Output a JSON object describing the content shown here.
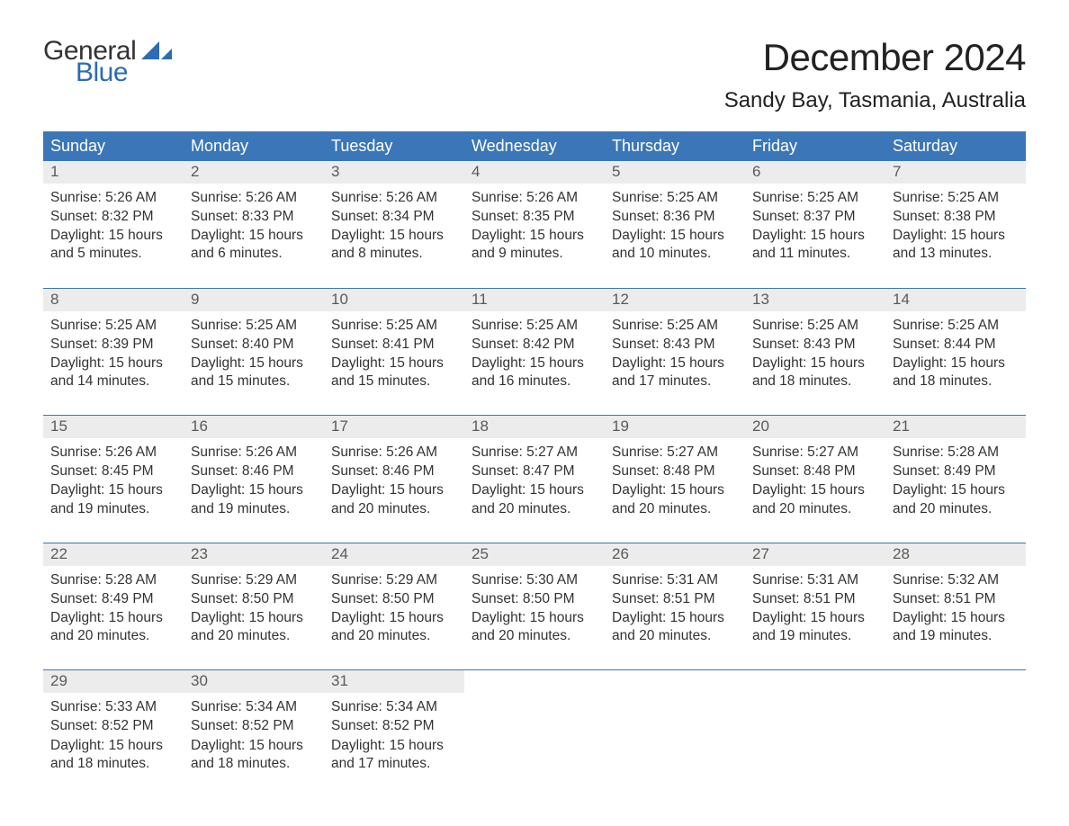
{
  "brand": {
    "name1": "General",
    "name2": "Blue",
    "accent": "#2b6cb3"
  },
  "title": "December 2024",
  "subtitle": "Sandy Bay, Tasmania, Australia",
  "colors": {
    "header_bg": "#3b77b8",
    "header_text": "#ffffff",
    "daynum_bg": "#ececec",
    "rule": "#3b77b8",
    "text": "#333333"
  },
  "weekdays": [
    "Sunday",
    "Monday",
    "Tuesday",
    "Wednesday",
    "Thursday",
    "Friday",
    "Saturday"
  ],
  "weeks": [
    [
      {
        "n": "1",
        "sunrise": "Sunrise: 5:26 AM",
        "sunset": "Sunset: 8:32 PM",
        "day": "Daylight: 15 hours and 5 minutes."
      },
      {
        "n": "2",
        "sunrise": "Sunrise: 5:26 AM",
        "sunset": "Sunset: 8:33 PM",
        "day": "Daylight: 15 hours and 6 minutes."
      },
      {
        "n": "3",
        "sunrise": "Sunrise: 5:26 AM",
        "sunset": "Sunset: 8:34 PM",
        "day": "Daylight: 15 hours and 8 minutes."
      },
      {
        "n": "4",
        "sunrise": "Sunrise: 5:26 AM",
        "sunset": "Sunset: 8:35 PM",
        "day": "Daylight: 15 hours and 9 minutes."
      },
      {
        "n": "5",
        "sunrise": "Sunrise: 5:25 AM",
        "sunset": "Sunset: 8:36 PM",
        "day": "Daylight: 15 hours and 10 minutes."
      },
      {
        "n": "6",
        "sunrise": "Sunrise: 5:25 AM",
        "sunset": "Sunset: 8:37 PM",
        "day": "Daylight: 15 hours and 11 minutes."
      },
      {
        "n": "7",
        "sunrise": "Sunrise: 5:25 AM",
        "sunset": "Sunset: 8:38 PM",
        "day": "Daylight: 15 hours and 13 minutes."
      }
    ],
    [
      {
        "n": "8",
        "sunrise": "Sunrise: 5:25 AM",
        "sunset": "Sunset: 8:39 PM",
        "day": "Daylight: 15 hours and 14 minutes."
      },
      {
        "n": "9",
        "sunrise": "Sunrise: 5:25 AM",
        "sunset": "Sunset: 8:40 PM",
        "day": "Daylight: 15 hours and 15 minutes."
      },
      {
        "n": "10",
        "sunrise": "Sunrise: 5:25 AM",
        "sunset": "Sunset: 8:41 PM",
        "day": "Daylight: 15 hours and 15 minutes."
      },
      {
        "n": "11",
        "sunrise": "Sunrise: 5:25 AM",
        "sunset": "Sunset: 8:42 PM",
        "day": "Daylight: 15 hours and 16 minutes."
      },
      {
        "n": "12",
        "sunrise": "Sunrise: 5:25 AM",
        "sunset": "Sunset: 8:43 PM",
        "day": "Daylight: 15 hours and 17 minutes."
      },
      {
        "n": "13",
        "sunrise": "Sunrise: 5:25 AM",
        "sunset": "Sunset: 8:43 PM",
        "day": "Daylight: 15 hours and 18 minutes."
      },
      {
        "n": "14",
        "sunrise": "Sunrise: 5:25 AM",
        "sunset": "Sunset: 8:44 PM",
        "day": "Daylight: 15 hours and 18 minutes."
      }
    ],
    [
      {
        "n": "15",
        "sunrise": "Sunrise: 5:26 AM",
        "sunset": "Sunset: 8:45 PM",
        "day": "Daylight: 15 hours and 19 minutes."
      },
      {
        "n": "16",
        "sunrise": "Sunrise: 5:26 AM",
        "sunset": "Sunset: 8:46 PM",
        "day": "Daylight: 15 hours and 19 minutes."
      },
      {
        "n": "17",
        "sunrise": "Sunrise: 5:26 AM",
        "sunset": "Sunset: 8:46 PM",
        "day": "Daylight: 15 hours and 20 minutes."
      },
      {
        "n": "18",
        "sunrise": "Sunrise: 5:27 AM",
        "sunset": "Sunset: 8:47 PM",
        "day": "Daylight: 15 hours and 20 minutes."
      },
      {
        "n": "19",
        "sunrise": "Sunrise: 5:27 AM",
        "sunset": "Sunset: 8:48 PM",
        "day": "Daylight: 15 hours and 20 minutes."
      },
      {
        "n": "20",
        "sunrise": "Sunrise: 5:27 AM",
        "sunset": "Sunset: 8:48 PM",
        "day": "Daylight: 15 hours and 20 minutes."
      },
      {
        "n": "21",
        "sunrise": "Sunrise: 5:28 AM",
        "sunset": "Sunset: 8:49 PM",
        "day": "Daylight: 15 hours and 20 minutes."
      }
    ],
    [
      {
        "n": "22",
        "sunrise": "Sunrise: 5:28 AM",
        "sunset": "Sunset: 8:49 PM",
        "day": "Daylight: 15 hours and 20 minutes."
      },
      {
        "n": "23",
        "sunrise": "Sunrise: 5:29 AM",
        "sunset": "Sunset: 8:50 PM",
        "day": "Daylight: 15 hours and 20 minutes."
      },
      {
        "n": "24",
        "sunrise": "Sunrise: 5:29 AM",
        "sunset": "Sunset: 8:50 PM",
        "day": "Daylight: 15 hours and 20 minutes."
      },
      {
        "n": "25",
        "sunrise": "Sunrise: 5:30 AM",
        "sunset": "Sunset: 8:50 PM",
        "day": "Daylight: 15 hours and 20 minutes."
      },
      {
        "n": "26",
        "sunrise": "Sunrise: 5:31 AM",
        "sunset": "Sunset: 8:51 PM",
        "day": "Daylight: 15 hours and 20 minutes."
      },
      {
        "n": "27",
        "sunrise": "Sunrise: 5:31 AM",
        "sunset": "Sunset: 8:51 PM",
        "day": "Daylight: 15 hours and 19 minutes."
      },
      {
        "n": "28",
        "sunrise": "Sunrise: 5:32 AM",
        "sunset": "Sunset: 8:51 PM",
        "day": "Daylight: 15 hours and 19 minutes."
      }
    ],
    [
      {
        "n": "29",
        "sunrise": "Sunrise: 5:33 AM",
        "sunset": "Sunset: 8:52 PM",
        "day": "Daylight: 15 hours and 18 minutes."
      },
      {
        "n": "30",
        "sunrise": "Sunrise: 5:34 AM",
        "sunset": "Sunset: 8:52 PM",
        "day": "Daylight: 15 hours and 18 minutes."
      },
      {
        "n": "31",
        "sunrise": "Sunrise: 5:34 AM",
        "sunset": "Sunset: 8:52 PM",
        "day": "Daylight: 15 hours and 17 minutes."
      },
      null,
      null,
      null,
      null
    ]
  ]
}
